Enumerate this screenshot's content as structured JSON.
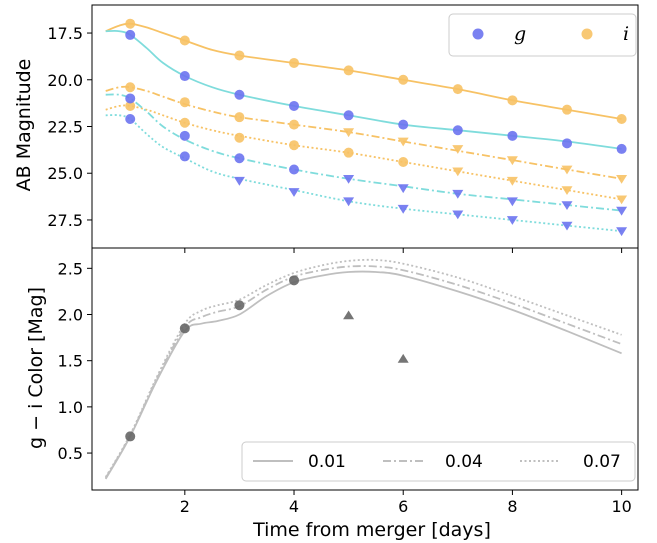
{
  "colors": {
    "g": "#6b73f0",
    "g_line": "#7fdcdc",
    "i": "#f7c265",
    "color_line": "#bfbfbf",
    "color_marker": "#666666"
  },
  "legends": {
    "top": {
      "g": "g",
      "i": "i"
    },
    "bottom": {
      "l1": "0.01",
      "l2": "0.04",
      "l3": "0.07"
    }
  },
  "chart_data": [
    {
      "type": "line",
      "panel": "top",
      "xlabel": "",
      "ylabel": "AB Magnitude",
      "xlim": [
        0.3,
        10.3
      ],
      "ylim": [
        29.0,
        16.0
      ],
      "y_inverted": true,
      "yticks": [
        "17.5",
        "20.0",
        "22.5",
        "25.0",
        "27.5"
      ],
      "legend": {
        "placement": "top-right",
        "entries": [
          "g",
          "i"
        ]
      },
      "grid": false,
      "series": [
        {
          "name": "i",
          "band": "i",
          "style": "solid",
          "x": [
            0.55,
            0.8,
            1.0,
            1.3,
            1.6,
            2,
            2.5,
            3,
            4,
            5,
            6,
            7,
            8,
            9,
            10
          ],
          "y": [
            17.4,
            17.1,
            17.0,
            17.2,
            17.5,
            17.9,
            18.4,
            18.7,
            19.1,
            19.5,
            20.0,
            20.5,
            21.1,
            21.6,
            22.1
          ]
        },
        {
          "band": "i",
          "style": "dashdot",
          "x": [
            0.55,
            0.8,
            1.0,
            1.3,
            1.6,
            2,
            2.5,
            3,
            4,
            5,
            6,
            7,
            8,
            9,
            10
          ],
          "y": [
            20.6,
            20.4,
            20.4,
            20.6,
            20.9,
            21.3,
            21.7,
            22.0,
            22.4,
            22.8,
            23.3,
            23.8,
            24.3,
            24.8,
            25.3
          ]
        },
        {
          "band": "i",
          "style": "dotted",
          "x": [
            0.55,
            0.8,
            1.0,
            1.3,
            1.6,
            2,
            2.5,
            3,
            4,
            5,
            6,
            7,
            8,
            9,
            10
          ],
          "y": [
            21.6,
            21.4,
            21.4,
            21.6,
            21.9,
            22.3,
            22.7,
            23.0,
            23.5,
            23.9,
            24.4,
            24.9,
            25.4,
            25.9,
            26.4
          ]
        },
        {
          "name": "g",
          "band": "g",
          "style": "solid",
          "x": [
            0.55,
            0.8,
            1.0,
            1.3,
            1.6,
            2,
            2.5,
            3,
            4,
            5,
            6,
            7,
            8,
            9,
            10
          ],
          "y": [
            17.4,
            17.4,
            17.6,
            18.3,
            19.1,
            19.8,
            20.4,
            20.8,
            21.4,
            21.9,
            22.4,
            22.7,
            23.0,
            23.3,
            23.7
          ]
        },
        {
          "band": "g",
          "style": "dashdot",
          "x": [
            0.55,
            0.8,
            1.0,
            1.3,
            1.6,
            2,
            2.5,
            3,
            4,
            5,
            6,
            7,
            8,
            9,
            10
          ],
          "y": [
            20.8,
            20.8,
            21.0,
            21.7,
            22.5,
            23.2,
            23.8,
            24.2,
            24.8,
            25.3,
            25.7,
            26.1,
            26.4,
            26.7,
            27.0
          ]
        },
        {
          "band": "g",
          "style": "dotted",
          "x": [
            0.55,
            0.8,
            1.0,
            1.3,
            1.6,
            2,
            2.5,
            3,
            4,
            5,
            6,
            7,
            8,
            9,
            10
          ],
          "y": [
            21.9,
            21.9,
            22.1,
            22.9,
            23.6,
            24.2,
            24.9,
            25.3,
            25.9,
            26.5,
            26.9,
            27.2,
            27.5,
            27.8,
            28.1
          ]
        }
      ],
      "markers": [
        {
          "band": "i",
          "shape": "circle",
          "x": [
            1,
            2,
            3,
            4,
            5,
            6,
            7,
            8,
            9,
            10
          ],
          "y": [
            17.0,
            17.9,
            18.7,
            19.1,
            19.5,
            20.0,
            20.5,
            21.1,
            21.6,
            22.1
          ]
        },
        {
          "band": "i",
          "shape": "circle",
          "x": [
            1,
            2,
            3,
            4
          ],
          "y": [
            20.4,
            21.2,
            22.0,
            22.4
          ]
        },
        {
          "band": "i",
          "shape": "circle",
          "x": [
            1,
            2,
            3,
            4,
            5,
            6
          ],
          "y": [
            21.4,
            22.3,
            23.1,
            23.5,
            23.9,
            24.4
          ]
        },
        {
          "band": "i",
          "shape": "triangle-down",
          "x": [
            5,
            6,
            7,
            8,
            9,
            10
          ],
          "y": [
            22.8,
            23.3,
            23.7,
            24.3,
            24.8,
            25.3
          ]
        },
        {
          "band": "i",
          "shape": "triangle-down",
          "x": [
            7,
            8,
            9,
            10
          ],
          "y": [
            24.9,
            25.4,
            25.9,
            26.4
          ]
        },
        {
          "band": "g",
          "shape": "circle",
          "x": [
            1,
            2,
            3,
            4,
            5,
            6,
            7,
            8,
            9,
            10
          ],
          "y": [
            17.6,
            19.8,
            20.8,
            21.4,
            21.9,
            22.4,
            22.7,
            23.0,
            23.4,
            23.7
          ]
        },
        {
          "band": "g",
          "shape": "circle",
          "x": [
            1,
            2,
            3,
            4
          ],
          "y": [
            21.0,
            23.0,
            24.2,
            24.8
          ]
        },
        {
          "band": "g",
          "shape": "circle",
          "x": [
            1,
            2
          ],
          "y": [
            22.1,
            24.1
          ]
        },
        {
          "band": "g",
          "shape": "triangle-down",
          "x": [
            5,
            6,
            7,
            8,
            9,
            10
          ],
          "y": [
            25.3,
            25.8,
            26.1,
            26.5,
            26.7,
            27.0
          ]
        },
        {
          "band": "g",
          "shape": "triangle-down",
          "x": [
            3,
            4,
            5,
            6,
            7,
            8,
            9,
            10
          ],
          "y": [
            25.4,
            26.0,
            26.5,
            26.9,
            27.2,
            27.5,
            27.8,
            28.1
          ]
        }
      ]
    },
    {
      "type": "line",
      "panel": "bottom",
      "xlabel": "Time from merger [days]",
      "ylabel": "g − i Color [Mag]",
      "xlim": [
        0.3,
        10.3
      ],
      "ylim": [
        0.1,
        2.72
      ],
      "xticks": [
        "2",
        "4",
        "6",
        "8",
        "10"
      ],
      "yticks": [
        "0.5",
        "1.0",
        "1.5",
        "2.0",
        "2.5"
      ],
      "legend": {
        "placement": "bottom-right",
        "entries": [
          "0.01",
          "0.04",
          "0.07"
        ]
      },
      "grid": false,
      "series": [
        {
          "name": "0.01",
          "style": "solid",
          "x": [
            0.55,
            1,
            1.5,
            2,
            2.3,
            2.6,
            3,
            3.5,
            4,
            4.5,
            5,
            5.5,
            6,
            7,
            8,
            9,
            10
          ],
          "y": [
            0.22,
            0.68,
            1.3,
            1.82,
            1.9,
            1.93,
            2.0,
            2.2,
            2.35,
            2.42,
            2.46,
            2.46,
            2.42,
            2.25,
            2.05,
            1.82,
            1.58
          ]
        },
        {
          "name": "0.04",
          "style": "dashdot",
          "x": [
            0.55,
            1,
            1.5,
            2,
            2.3,
            2.6,
            3,
            3.5,
            4,
            4.5,
            5,
            5.5,
            6,
            7,
            8,
            9,
            10
          ],
          "y": [
            0.23,
            0.69,
            1.32,
            1.86,
            1.97,
            2.03,
            2.09,
            2.27,
            2.41,
            2.48,
            2.52,
            2.52,
            2.48,
            2.32,
            2.12,
            1.9,
            1.68
          ]
        },
        {
          "name": "0.07",
          "style": "dotted",
          "x": [
            0.55,
            1,
            1.5,
            2,
            2.3,
            2.6,
            3,
            3.5,
            4,
            4.5,
            5,
            5.5,
            6,
            7,
            8,
            9,
            10
          ],
          "y": [
            0.24,
            0.7,
            1.34,
            1.9,
            2.04,
            2.1,
            2.16,
            2.32,
            2.45,
            2.53,
            2.58,
            2.59,
            2.55,
            2.4,
            2.2,
            1.99,
            1.78
          ]
        }
      ],
      "markers": [
        {
          "shape": "circle",
          "x": [
            1,
            2,
            3,
            4
          ],
          "y": [
            0.68,
            1.85,
            2.1,
            2.37
          ]
        },
        {
          "shape": "triangle-up",
          "x": [
            5,
            6
          ],
          "y": [
            1.99,
            1.52
          ]
        }
      ]
    }
  ]
}
